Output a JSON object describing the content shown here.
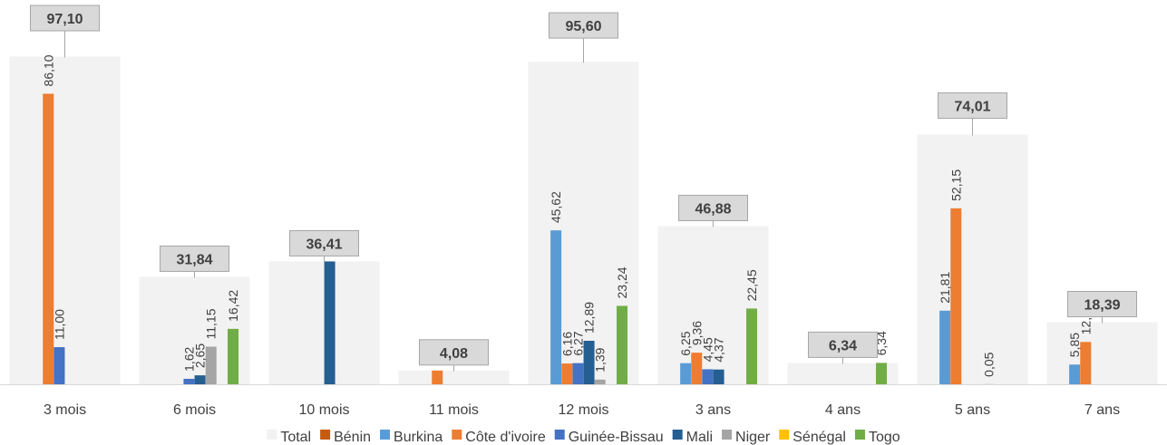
{
  "chart_data": {
    "type": "bar",
    "categories": [
      "3 mois",
      "6 mois",
      "10 mois",
      "11 mois",
      "12 mois",
      "3 ans",
      "4 ans",
      "5 ans",
      "7 ans"
    ],
    "total": {
      "name": "Total",
      "values": [
        97.1,
        31.84,
        36.41,
        4.08,
        95.6,
        46.88,
        6.34,
        74.01,
        18.39
      ],
      "labels": [
        "97,10",
        "31,84",
        "36,41",
        "4,08",
        "95,60",
        "46,88",
        "6,34",
        "74,01",
        "18,39"
      ],
      "color": "#f2f2f2"
    },
    "series": [
      {
        "name": "Bénin",
        "color": "#c55a11",
        "values": [
          null,
          null,
          null,
          null,
          null,
          null,
          null,
          null,
          null
        ],
        "labels": [
          "",
          "",
          "",
          "",
          "",
          "",
          "",
          "",
          ""
        ]
      },
      {
        "name": "Burkina",
        "color": "#5b9bd5",
        "values": [
          null,
          null,
          null,
          null,
          45.62,
          6.25,
          null,
          21.81,
          5.85
        ],
        "labels": [
          "",
          "",
          "",
          "",
          "45,62",
          "6,25",
          "",
          "21,81",
          "5,85"
        ]
      },
      {
        "name": "Côte d'ivoire",
        "color": "#ed7d31",
        "values": [
          86.1,
          null,
          null,
          4.08,
          6.16,
          9.36,
          null,
          52.15,
          12.54
        ],
        "labels": [
          "86,10",
          "",
          "",
          "",
          "6,16",
          "9,36",
          "",
          "52,15",
          "12,54"
        ]
      },
      {
        "name": "Guinée-Bissau",
        "color": "#4472c4",
        "values": [
          11.0,
          1.62,
          null,
          null,
          6.27,
          4.45,
          null,
          null,
          null
        ],
        "labels": [
          "11,00",
          "1,62",
          "",
          "",
          "6,27",
          "4,45",
          "",
          "",
          ""
        ]
      },
      {
        "name": "Mali",
        "color": "#255e91",
        "values": [
          null,
          2.65,
          36.41,
          null,
          12.89,
          4.37,
          null,
          null,
          null
        ],
        "labels": [
          "",
          "2,65",
          "",
          "",
          "12,89",
          "4,37",
          "",
          "",
          ""
        ]
      },
      {
        "name": "Niger",
        "color": "#a5a5a5",
        "values": [
          null,
          11.15,
          null,
          null,
          1.39,
          null,
          null,
          0.05,
          null
        ],
        "labels": [
          "",
          "11,15",
          "",
          "",
          "1,39",
          "",
          "",
          "0,05",
          ""
        ]
      },
      {
        "name": "Sénégal",
        "color": "#ffc000",
        "values": [
          null,
          null,
          null,
          null,
          null,
          null,
          null,
          null,
          null
        ],
        "labels": [
          "",
          "",
          "",
          "",
          "",
          "",
          "",
          "",
          ""
        ]
      },
      {
        "name": "Togo",
        "color": "#70ad47",
        "values": [
          null,
          16.42,
          null,
          null,
          23.24,
          22.45,
          6.34,
          null,
          null
        ],
        "labels": [
          "",
          "16,42",
          "",
          "",
          "23,24",
          "22,45",
          "6,34",
          "",
          ""
        ]
      }
    ],
    "legend": [
      "Total",
      "Bénin",
      "Burkina",
      "Côte d'ivoire",
      "Guinée-Bissau",
      "Mali",
      "Niger",
      "Sénégal",
      "Togo"
    ],
    "legend_position": "bottom",
    "ylim": [
      0,
      100
    ],
    "grid": false,
    "y_axis_visible": false
  }
}
